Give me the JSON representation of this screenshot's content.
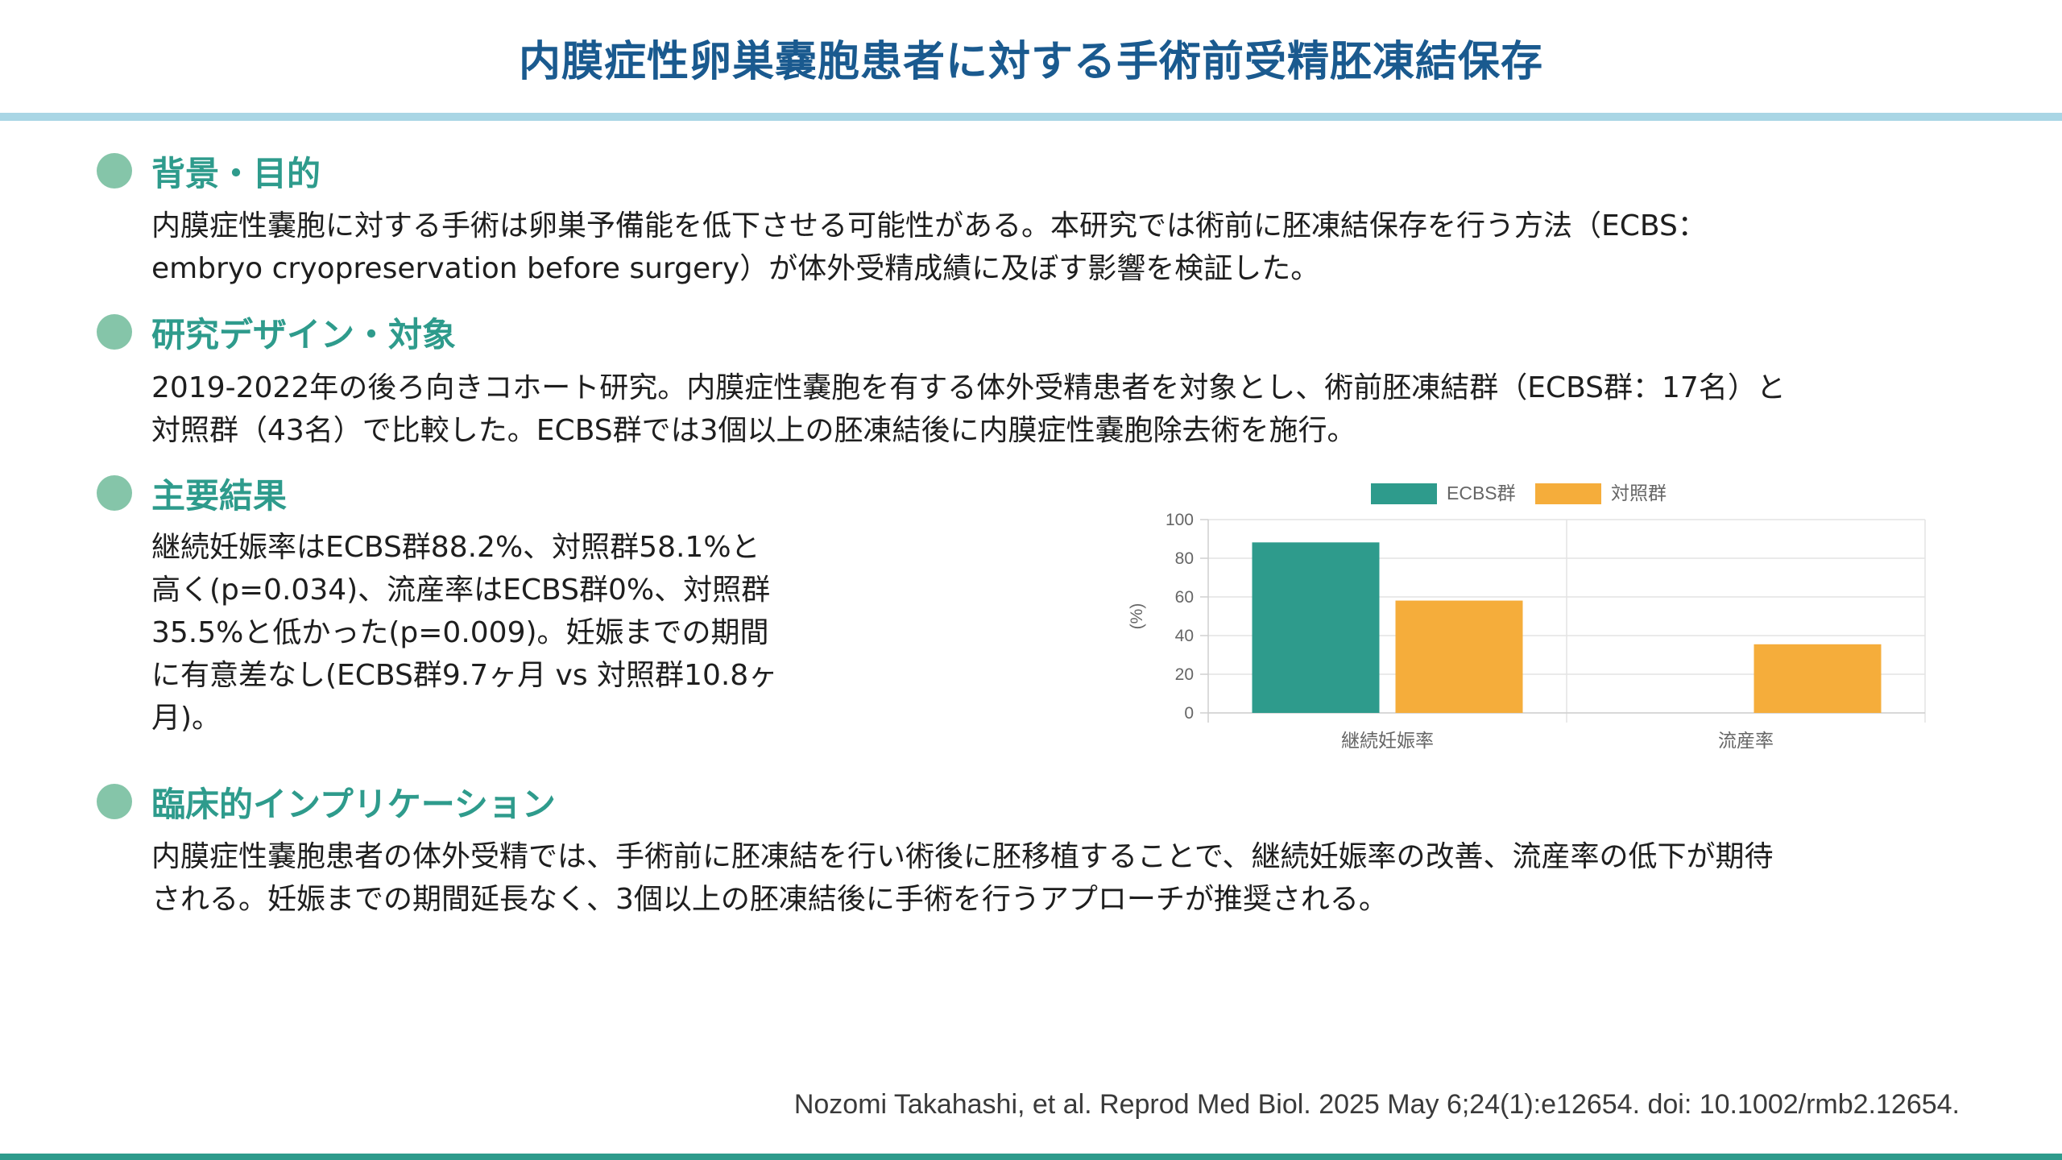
{
  "title": "内膜症性卵巣嚢胞患者に対する手術前受精胚凍結保存",
  "sections": [
    {
      "heading": "背景・目的",
      "lines": [
        "内膜症性嚢胞に対する手術は卵巣予備能を低下させる可能性がある。本研究では術前に胚凍結保存を行う方法（ECBS：",
        "embryo cryopreservation before surgery）が体外受精成績に及ぼす影響を検証した。"
      ]
    },
    {
      "heading": "研究デザイン・対象",
      "lines": [
        "2019-2022年の後ろ向きコホート研究。内膜症性嚢胞を有する体外受精患者を対象とし、術前胚凍結群（ECBS群：17名）と",
        "対照群（43名）で比較した。ECBS群では3個以上の胚凍結後に内膜症性嚢胞除去術を施行。"
      ]
    },
    {
      "heading": "主要結果",
      "lines": [
        "継続妊娠率はECBS群88.2%、対照群58.1%と",
        "高く(p=0.034)、流産率はECBS群0%、対照群",
        "35.5%と低かった(p=0.009)。妊娠までの期間",
        "に有意差なし(ECBS群9.7ヶ月 vs 対照群10.8ヶ",
        "月)。"
      ]
    },
    {
      "heading": "臨床的インプリケーション",
      "lines": [
        "内膜症性嚢胞患者の体外受精では、手術前に胚凍結を行い術後に胚移植することで、継続妊娠率の改善、流産率の低下が期待",
        "される。妊娠までの期間延長なく、3個以上の胚凍結後に手術を行うアプローチが推奨される。"
      ]
    }
  ],
  "chart_data": {
    "type": "bar",
    "categories": [
      "継続妊娠率",
      "流産率"
    ],
    "series": [
      {
        "name": "ECBS群",
        "values": [
          88.2,
          0
        ],
        "color": "#2e9b8c"
      },
      {
        "name": "対照群",
        "values": [
          58.1,
          35.5
        ],
        "color": "#f5ad3b"
      }
    ],
    "ylabel": "(%)",
    "ylim": [
      0,
      100
    ],
    "yticks": [
      0,
      20,
      40,
      60,
      80,
      100
    ],
    "grid": true,
    "legend": "top-center"
  },
  "citation": "Nozomi Takahashi, et al. Reprod Med Biol. 2025 May 6;24(1):e12654.  doi: 10.1002/rmb2.12654."
}
